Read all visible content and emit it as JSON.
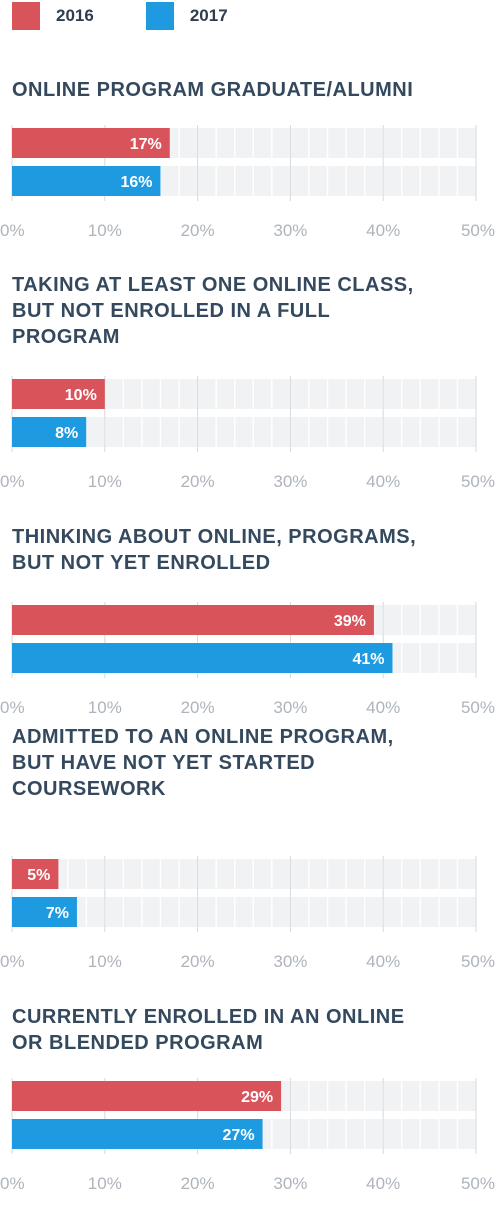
{
  "legend": [
    {
      "label": "2016",
      "color": "#d9535b"
    },
    {
      "label": "2017",
      "color": "#1e9be0"
    }
  ],
  "chart_data": [
    {
      "type": "bar",
      "orientation": "horizontal",
      "title": "ONLINE PROGRAM GRADUATE/ALUMNI",
      "series": [
        {
          "name": "2016",
          "values": [
            17
          ]
        },
        {
          "name": "2017",
          "values": [
            16
          ]
        }
      ],
      "value_labels": [
        "17%",
        "16%"
      ],
      "xlim": [
        0,
        50
      ],
      "xticks": [
        "0%",
        "10%",
        "20%",
        "30%",
        "40%",
        "50%"
      ],
      "grid": true
    },
    {
      "type": "bar",
      "orientation": "horizontal",
      "title": "TAKING AT LEAST ONE ONLINE CLASS,\nBUT NOT ENROLLED IN A FULL\nPROGRAM",
      "series": [
        {
          "name": "2016",
          "values": [
            10
          ]
        },
        {
          "name": "2017",
          "values": [
            8
          ]
        }
      ],
      "value_labels": [
        "10%",
        "8%"
      ],
      "xlim": [
        0,
        50
      ],
      "xticks": [
        "0%",
        "10%",
        "20%",
        "30%",
        "40%",
        "50%"
      ],
      "grid": true
    },
    {
      "type": "bar",
      "orientation": "horizontal",
      "title": "THINKING ABOUT ONLINE, PROGRAMS,\nBUT NOT YET ENROLLED",
      "series": [
        {
          "name": "2016",
          "values": [
            39
          ]
        },
        {
          "name": "2017",
          "values": [
            41
          ]
        }
      ],
      "value_labels": [
        "39%",
        "41%"
      ],
      "xlim": [
        0,
        50
      ],
      "xticks": [
        "0%",
        "10%",
        "20%",
        "30%",
        "40%",
        "50%"
      ],
      "grid": true
    },
    {
      "type": "bar",
      "orientation": "horizontal",
      "title": "ADMITTED TO AN ONLINE PROGRAM,\nBUT HAVE NOT YET STARTED\nCOURSEWORK",
      "series": [
        {
          "name": "2016",
          "values": [
            5
          ]
        },
        {
          "name": "2017",
          "values": [
            7
          ]
        }
      ],
      "value_labels": [
        "5%",
        "7%"
      ],
      "xlim": [
        0,
        50
      ],
      "xticks": [
        "0%",
        "10%",
        "20%",
        "30%",
        "40%",
        "50%"
      ],
      "grid": true
    },
    {
      "type": "bar",
      "orientation": "horizontal",
      "title": "CURRENTLY ENROLLED IN AN ONLINE\nOR BLENDED PROGRAM",
      "series": [
        {
          "name": "2016",
          "values": [
            29
          ]
        },
        {
          "name": "2017",
          "values": [
            27
          ]
        }
      ],
      "value_labels": [
        "29%",
        "27%"
      ],
      "xlim": [
        0,
        50
      ],
      "xticks": [
        "0%",
        "10%",
        "20%",
        "30%",
        "40%",
        "50%"
      ],
      "grid": true
    }
  ]
}
